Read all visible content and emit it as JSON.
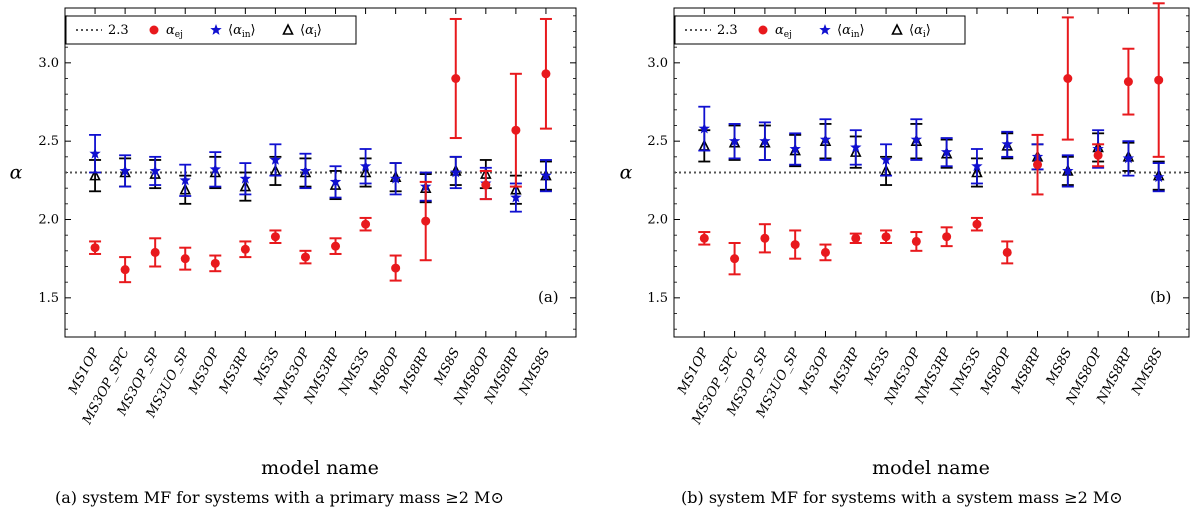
{
  "chart_data": [
    {
      "type": "scatter",
      "panel_label": "(a)",
      "caption": "(a)  system MF for systems with a primary mass ≥2 M⊙",
      "xlabel": "model name",
      "ylabel": "α",
      "ylim": [
        1.25,
        3.35
      ],
      "yticks": [
        "1.5",
        "2.0",
        "2.5",
        "3.0"
      ],
      "reference_line": {
        "label": "2.3",
        "value": 2.3
      },
      "categories": [
        "MS1OP",
        "MS3OP_SPC",
        "MS3OP_SP",
        "MS3UO_SP",
        "MS3OP",
        "MS3RP",
        "MS3S",
        "NMS3OP",
        "NMS3RP",
        "NMS3S",
        "MS8OP",
        "MS8RP",
        "MS8S",
        "NMS8OP",
        "NMS8RP",
        "NMS8S"
      ],
      "series": [
        {
          "name": "α_ej",
          "legend": "αej",
          "color": "#e8191d",
          "marker": "circle",
          "values": [
            1.82,
            1.68,
            1.79,
            1.75,
            1.72,
            1.81,
            1.89,
            1.76,
            1.83,
            1.97,
            1.69,
            1.99,
            2.9,
            2.22,
            2.57,
            2.93
          ],
          "err": [
            0.04,
            0.08,
            0.09,
            0.07,
            0.05,
            0.05,
            0.04,
            0.04,
            0.05,
            0.04,
            0.08,
            0.25,
            0.38,
            0.09,
            0.36,
            0.35
          ]
        },
        {
          "name": "⟨α_in⟩",
          "legend": "⟨αin⟩",
          "color": "#1010d0",
          "marker": "star",
          "values": [
            2.42,
            2.31,
            2.31,
            2.25,
            2.32,
            2.26,
            2.38,
            2.31,
            2.24,
            2.34,
            2.26,
            2.21,
            2.3,
            2.23,
            2.14,
            2.28
          ],
          "err": [
            0.12,
            0.1,
            0.09,
            0.1,
            0.11,
            0.1,
            0.1,
            0.11,
            0.1,
            0.11,
            0.1,
            0.09,
            0.1,
            0.1,
            0.09,
            0.1
          ]
        },
        {
          "name": "⟨α_i⟩",
          "legend": "⟨αi⟩",
          "color": "#000000",
          "marker": "triangle",
          "values": [
            2.28,
            2.3,
            2.29,
            2.19,
            2.3,
            2.21,
            2.31,
            2.3,
            2.22,
            2.3,
            2.27,
            2.2,
            2.31,
            2.29,
            2.19,
            2.28
          ],
          "err": [
            0.1,
            0.09,
            0.09,
            0.09,
            0.1,
            0.09,
            0.09,
            0.09,
            0.09,
            0.09,
            0.09,
            0.09,
            0.09,
            0.09,
            0.09,
            0.09
          ]
        }
      ]
    },
    {
      "type": "scatter",
      "panel_label": "(b)",
      "caption": "(b)  system MF for systems with a system mass ≥2 M⊙",
      "xlabel": "model name",
      "ylabel": "α",
      "ylim": [
        1.25,
        3.35
      ],
      "yticks": [
        "1.5",
        "2.0",
        "2.5",
        "3.0"
      ],
      "reference_line": {
        "label": "2.3",
        "value": 2.3
      },
      "categories": [
        "MS1OP",
        "MS3OP_SPC",
        "MS3OP_SP",
        "MS3UO_SP",
        "MS3OP",
        "MS3RP",
        "MS3S",
        "NMS3OP",
        "NMS3RP",
        "NMS3S",
        "MS8OP",
        "MS8RP",
        "MS8S",
        "NMS8OP",
        "NMS8RP",
        "NMS8S"
      ],
      "series": [
        {
          "name": "α_ej",
          "legend": "αej",
          "color": "#e8191d",
          "marker": "circle",
          "values": [
            1.88,
            1.75,
            1.88,
            1.84,
            1.79,
            1.88,
            1.89,
            1.86,
            1.89,
            1.97,
            1.79,
            2.35,
            2.9,
            2.41,
            2.88,
            2.89
          ],
          "err": [
            0.04,
            0.1,
            0.09,
            0.09,
            0.05,
            0.03,
            0.04,
            0.06,
            0.06,
            0.04,
            0.07,
            0.19,
            0.39,
            0.07,
            0.21,
            0.49
          ]
        },
        {
          "name": "⟨α_in⟩",
          "legend": "⟨αin⟩",
          "color": "#1010d0",
          "marker": "star",
          "values": [
            2.58,
            2.5,
            2.5,
            2.45,
            2.51,
            2.46,
            2.38,
            2.51,
            2.43,
            2.34,
            2.48,
            2.4,
            2.31,
            2.45,
            2.39,
            2.27
          ],
          "err": [
            0.14,
            0.11,
            0.12,
            0.1,
            0.13,
            0.11,
            0.1,
            0.13,
            0.09,
            0.11,
            0.08,
            0.08,
            0.1,
            0.12,
            0.11,
            0.09
          ]
        },
        {
          "name": "⟨α_i⟩",
          "legend": "⟨αi⟩",
          "color": "#000000",
          "marker": "triangle",
          "values": [
            2.47,
            2.49,
            2.49,
            2.44,
            2.5,
            2.43,
            2.31,
            2.5,
            2.42,
            2.3,
            2.47,
            2.4,
            2.31,
            2.46,
            2.4,
            2.28
          ],
          "err": [
            0.1,
            0.11,
            0.11,
            0.1,
            0.11,
            0.1,
            0.09,
            0.11,
            0.09,
            0.09,
            0.08,
            0.08,
            0.09,
            0.09,
            0.09,
            0.09
          ]
        }
      ]
    }
  ]
}
